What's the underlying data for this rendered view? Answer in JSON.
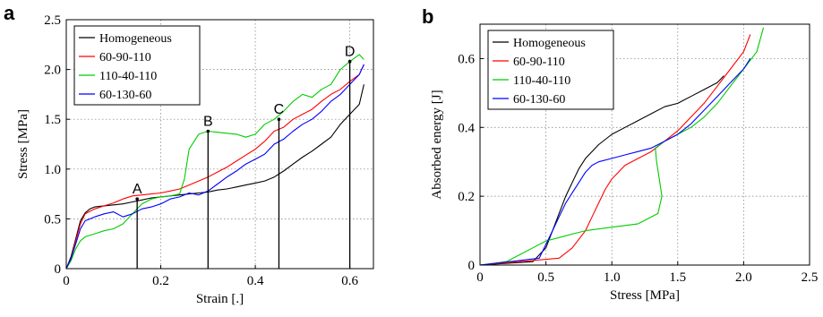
{
  "panels": {
    "a": "a",
    "b": "b"
  },
  "chart_data": [
    {
      "type": "line",
      "xlabel": "Strain [.]",
      "ylabel": "Stress [MPa]",
      "xlim": [
        0,
        0.65
      ],
      "ylim": [
        0,
        2.5
      ],
      "xticks": [
        0,
        0.2,
        0.4,
        0.6
      ],
      "yticks": [
        0,
        0.5,
        1.0,
        1.5,
        2.0,
        2.5
      ],
      "xtick_labels": [
        "0",
        "0.2",
        "0.4",
        "0.6"
      ],
      "ytick_labels": [
        "0",
        "0.5",
        "1.0",
        "1.5",
        "2.0",
        "2.5"
      ],
      "grid": true,
      "legend_position": "top-left",
      "colors": [
        "#000000",
        "#ff0000",
        "#00cc00",
        "#0000ff"
      ],
      "series": [
        {
          "name": "Homogeneous",
          "x": [
            0,
            0.01,
            0.02,
            0.03,
            0.04,
            0.05,
            0.06,
            0.08,
            0.1,
            0.12,
            0.14,
            0.16,
            0.18,
            0.2,
            0.22,
            0.24,
            0.26,
            0.28,
            0.3,
            0.32,
            0.34,
            0.36,
            0.38,
            0.4,
            0.42,
            0.44,
            0.46,
            0.48,
            0.5,
            0.52,
            0.54,
            0.56,
            0.58,
            0.6,
            0.62,
            0.63
          ],
          "y": [
            0,
            0.12,
            0.3,
            0.48,
            0.56,
            0.6,
            0.62,
            0.63,
            0.64,
            0.65,
            0.67,
            0.69,
            0.71,
            0.72,
            0.73,
            0.74,
            0.75,
            0.76,
            0.77,
            0.79,
            0.8,
            0.82,
            0.84,
            0.86,
            0.88,
            0.92,
            0.98,
            1.05,
            1.12,
            1.18,
            1.25,
            1.32,
            1.45,
            1.55,
            1.65,
            1.85
          ]
        },
        {
          "name": "60-90-110",
          "x": [
            0,
            0.01,
            0.02,
            0.03,
            0.04,
            0.06,
            0.08,
            0.1,
            0.12,
            0.14,
            0.16,
            0.18,
            0.2,
            0.22,
            0.24,
            0.26,
            0.28,
            0.3,
            0.32,
            0.34,
            0.36,
            0.38,
            0.4,
            0.42,
            0.44,
            0.46,
            0.48,
            0.5,
            0.52,
            0.54,
            0.56,
            0.58,
            0.6,
            0.62,
            0.63
          ],
          "y": [
            0,
            0.1,
            0.28,
            0.45,
            0.55,
            0.6,
            0.63,
            0.66,
            0.7,
            0.73,
            0.74,
            0.75,
            0.76,
            0.78,
            0.8,
            0.84,
            0.88,
            0.92,
            0.97,
            1.02,
            1.08,
            1.14,
            1.2,
            1.28,
            1.38,
            1.42,
            1.5,
            1.55,
            1.6,
            1.68,
            1.75,
            1.8,
            1.88,
            1.95,
            2.05
          ]
        },
        {
          "name": "110-40-110",
          "x": [
            0,
            0.01,
            0.02,
            0.03,
            0.04,
            0.06,
            0.08,
            0.1,
            0.12,
            0.14,
            0.16,
            0.18,
            0.2,
            0.22,
            0.24,
            0.25,
            0.26,
            0.28,
            0.3,
            0.32,
            0.34,
            0.36,
            0.38,
            0.4,
            0.42,
            0.44,
            0.46,
            0.48,
            0.5,
            0.52,
            0.54,
            0.56,
            0.58,
            0.6,
            0.62,
            0.63
          ],
          "y": [
            0,
            0.08,
            0.2,
            0.28,
            0.32,
            0.35,
            0.38,
            0.4,
            0.45,
            0.55,
            0.65,
            0.7,
            0.72,
            0.73,
            0.75,
            0.9,
            1.2,
            1.35,
            1.38,
            1.37,
            1.36,
            1.35,
            1.32,
            1.35,
            1.45,
            1.5,
            1.58,
            1.68,
            1.75,
            1.72,
            1.8,
            1.85,
            2.0,
            2.08,
            2.15,
            2.1
          ]
        },
        {
          "name": "60-130-60",
          "x": [
            0,
            0.01,
            0.02,
            0.03,
            0.04,
            0.06,
            0.08,
            0.1,
            0.12,
            0.14,
            0.16,
            0.18,
            0.2,
            0.22,
            0.24,
            0.26,
            0.28,
            0.3,
            0.32,
            0.34,
            0.36,
            0.38,
            0.4,
            0.42,
            0.44,
            0.46,
            0.48,
            0.5,
            0.52,
            0.54,
            0.56,
            0.58,
            0.6,
            0.62,
            0.63
          ],
          "y": [
            0,
            0.1,
            0.25,
            0.4,
            0.48,
            0.52,
            0.55,
            0.57,
            0.52,
            0.55,
            0.6,
            0.62,
            0.65,
            0.7,
            0.72,
            0.76,
            0.74,
            0.78,
            0.85,
            0.92,
            0.98,
            1.05,
            1.1,
            1.15,
            1.25,
            1.3,
            1.38,
            1.45,
            1.5,
            1.58,
            1.68,
            1.75,
            1.85,
            1.95,
            2.05
          ]
        }
      ],
      "annotations": [
        {
          "label": "A",
          "x": 0.15,
          "y": 0.7
        },
        {
          "label": "B",
          "x": 0.3,
          "y": 1.38
        },
        {
          "label": "C",
          "x": 0.45,
          "y": 1.5
        },
        {
          "label": "D",
          "x": 0.6,
          "y": 2.08
        }
      ]
    },
    {
      "type": "line",
      "xlabel": "Stress [MPa]",
      "ylabel": "Absorbed energy [J]",
      "xlim": [
        0,
        2.5
      ],
      "ylim": [
        0,
        0.7
      ],
      "xticks": [
        0,
        0.5,
        1.0,
        1.5,
        2.0,
        2.5
      ],
      "yticks": [
        0,
        0.2,
        0.4,
        0.6
      ],
      "xtick_labels": [
        "0",
        "0.5",
        "1.0",
        "1.5",
        "2.0",
        "2.5"
      ],
      "ytick_labels": [
        "0",
        "0.2",
        "0.4",
        "0.6"
      ],
      "grid": true,
      "legend_position": "top-left",
      "colors": [
        "#000000",
        "#ff0000",
        "#00cc00",
        "#0000ff"
      ],
      "series": [
        {
          "name": "Homogeneous",
          "x": [
            0,
            0.4,
            0.5,
            0.55,
            0.6,
            0.65,
            0.7,
            0.75,
            0.8,
            0.85,
            0.9,
            1.0,
            1.1,
            1.2,
            1.3,
            1.4,
            1.5,
            1.6,
            1.7,
            1.8,
            1.85
          ],
          "y": [
            0,
            0.01,
            0.05,
            0.1,
            0.15,
            0.2,
            0.24,
            0.28,
            0.31,
            0.33,
            0.35,
            0.38,
            0.4,
            0.42,
            0.44,
            0.46,
            0.47,
            0.49,
            0.51,
            0.53,
            0.55
          ]
        },
        {
          "name": "60-90-110",
          "x": [
            0,
            0.6,
            0.7,
            0.8,
            0.85,
            0.9,
            0.95,
            1.0,
            1.05,
            1.1,
            1.2,
            1.3,
            1.4,
            1.5,
            1.6,
            1.7,
            1.8,
            1.9,
            2.0,
            2.05
          ],
          "y": [
            0,
            0.02,
            0.05,
            0.1,
            0.14,
            0.18,
            0.22,
            0.25,
            0.27,
            0.29,
            0.31,
            0.33,
            0.36,
            0.39,
            0.43,
            0.47,
            0.52,
            0.57,
            0.62,
            0.67
          ]
        },
        {
          "name": "110-40-110",
          "x": [
            0,
            0.2,
            0.3,
            0.4,
            0.5,
            0.6,
            0.7,
            0.8,
            1.0,
            1.2,
            1.35,
            1.38,
            1.36,
            1.34,
            1.33,
            1.4,
            1.5,
            1.6,
            1.7,
            1.8,
            1.9,
            2.0,
            2.1,
            2.15
          ],
          "y": [
            0,
            0.01,
            0.03,
            0.05,
            0.07,
            0.08,
            0.09,
            0.1,
            0.11,
            0.12,
            0.15,
            0.2,
            0.25,
            0.3,
            0.34,
            0.36,
            0.38,
            0.4,
            0.43,
            0.47,
            0.52,
            0.57,
            0.62,
            0.69
          ]
        },
        {
          "name": "60-130-60",
          "x": [
            0,
            0.45,
            0.5,
            0.55,
            0.6,
            0.65,
            0.7,
            0.75,
            0.8,
            0.85,
            0.9,
            1.0,
            1.1,
            1.2,
            1.3,
            1.4,
            1.5,
            1.6,
            1.7,
            1.8,
            1.9,
            2.0,
            2.05
          ],
          "y": [
            0,
            0.02,
            0.06,
            0.1,
            0.14,
            0.18,
            0.21,
            0.24,
            0.27,
            0.29,
            0.3,
            0.31,
            0.32,
            0.33,
            0.34,
            0.36,
            0.38,
            0.41,
            0.45,
            0.49,
            0.53,
            0.57,
            0.6
          ]
        }
      ]
    }
  ]
}
